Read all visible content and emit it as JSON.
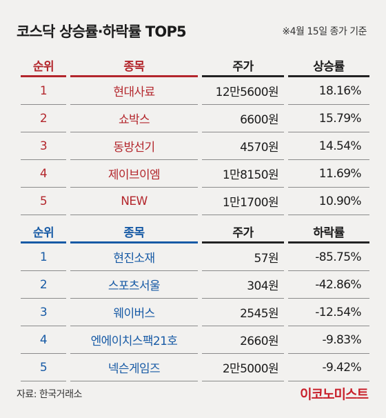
{
  "title": "코스닥 상승률·하락률 TOP5",
  "note": "※4월 15일 종가 기준",
  "gainers": {
    "headers": [
      "순위",
      "종목",
      "주가",
      "상승률"
    ],
    "rows": [
      {
        "rank": "1",
        "name": "현대사료",
        "price": "12만5600원",
        "pct": "18.16%"
      },
      {
        "rank": "2",
        "name": "쇼박스",
        "price": "6600원",
        "pct": "15.79%"
      },
      {
        "rank": "3",
        "name": "동방선기",
        "price": "4570원",
        "pct": "14.54%"
      },
      {
        "rank": "4",
        "name": "제이브이엠",
        "price": "1만8150원",
        "pct": "11.69%"
      },
      {
        "rank": "5",
        "name": "NEW",
        "price": "1만1700원",
        "pct": "10.90%"
      }
    ]
  },
  "losers": {
    "headers": [
      "순위",
      "종목",
      "주가",
      "하락률"
    ],
    "rows": [
      {
        "rank": "1",
        "name": "현진소재",
        "price": "57원",
        "pct": "-85.75%"
      },
      {
        "rank": "2",
        "name": "스포츠서울",
        "price": "304원",
        "pct": "-42.86%"
      },
      {
        "rank": "3",
        "name": "웨이버스",
        "price": "2545원",
        "pct": "-12.54%"
      },
      {
        "rank": "4",
        "name": "엔에이치스팩21호",
        "price": "2660원",
        "pct": "-9.83%"
      },
      {
        "rank": "5",
        "name": "넥슨게임즈",
        "price": "2만5000원",
        "pct": "-9.42%"
      }
    ]
  },
  "source": "자료: 한국거래소",
  "logo": "이코노미스트",
  "colors": {
    "gain": "#b3262c",
    "loss": "#175aa5",
    "background": "#f2f1ef"
  }
}
